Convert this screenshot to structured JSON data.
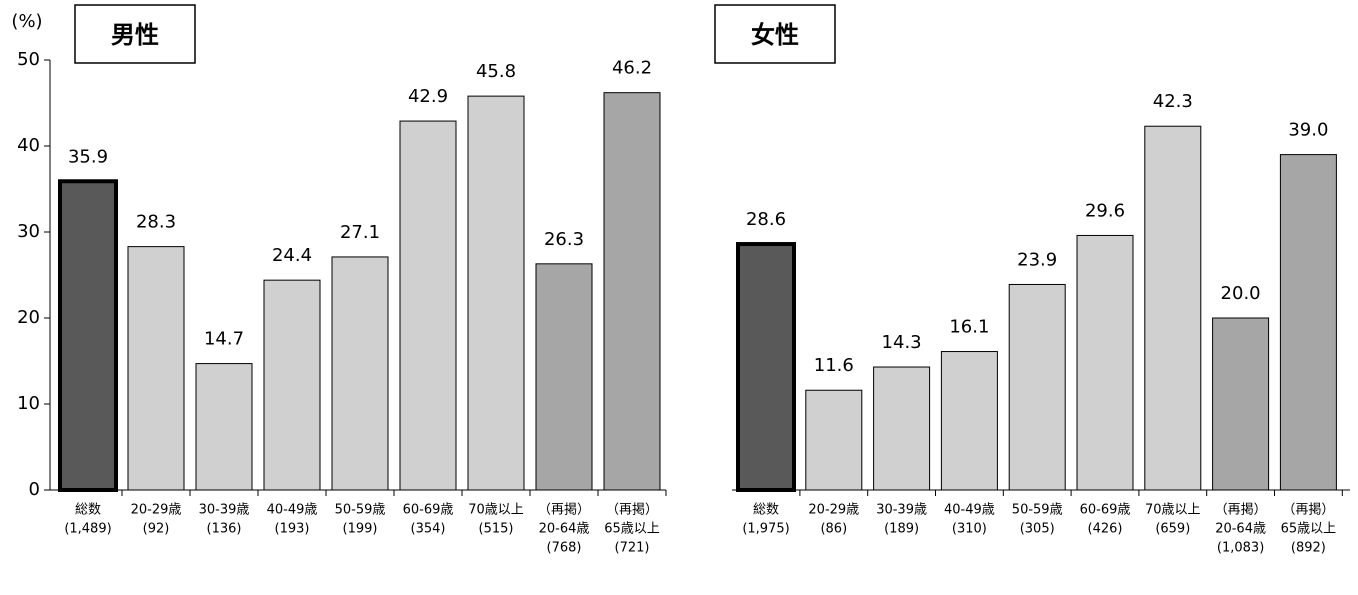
{
  "chart_data": [
    {
      "type": "bar",
      "title": "男性",
      "ylabel": "(%)",
      "categories": [
        [
          "総数",
          "(1,489)"
        ],
        [
          "20-29歳",
          "(92)"
        ],
        [
          "30-39歳",
          "(136)"
        ],
        [
          "40-49歳",
          "(193)"
        ],
        [
          "50-59歳",
          "(199)"
        ],
        [
          "60-69歳",
          "(354)"
        ],
        [
          "70歳以上",
          "(515)"
        ],
        [
          "（再掲）",
          "20-64歳",
          "(768)"
        ],
        [
          "（再掲）",
          "65歳以上",
          "(721)"
        ]
      ],
      "values": [
        35.9,
        28.3,
        14.7,
        24.4,
        27.1,
        42.9,
        45.8,
        26.3,
        46.2
      ],
      "value_labels": [
        "35.9",
        "28.3",
        "14.7",
        "24.4",
        "27.1",
        "42.9",
        "45.8",
        "26.3",
        "46.2"
      ],
      "colors": [
        "#595959",
        "#d0d0d0",
        "#d0d0d0",
        "#d0d0d0",
        "#d0d0d0",
        "#d0d0d0",
        "#d0d0d0",
        "#a6a6a6",
        "#a6a6a6"
      ],
      "edgewidths": [
        4,
        1,
        1,
        1,
        1,
        1,
        1,
        1,
        1
      ],
      "ylim": [
        0,
        50
      ],
      "yticks": [
        0,
        10,
        20,
        30,
        40,
        50
      ]
    },
    {
      "type": "bar",
      "title": "女性",
      "categories": [
        [
          "総数",
          "(1,975)"
        ],
        [
          "20-29歳",
          "(86)"
        ],
        [
          "30-39歳",
          "(189)"
        ],
        [
          "40-49歳",
          "(310)"
        ],
        [
          "50-59歳",
          "(305)"
        ],
        [
          "60-69歳",
          "(426)"
        ],
        [
          "70歳以上",
          "(659)"
        ],
        [
          "（再掲）",
          "20-64歳",
          "(1,083)"
        ],
        [
          "（再掲）",
          "65歳以上",
          "(892)"
        ]
      ],
      "values": [
        28.6,
        11.6,
        14.3,
        16.1,
        23.9,
        29.6,
        42.3,
        20.0,
        39.0
      ],
      "value_labels": [
        "28.6",
        "11.6",
        "14.3",
        "16.1",
        "23.9",
        "29.6",
        "42.3",
        "20.0",
        "39.0"
      ],
      "colors": [
        "#595959",
        "#d0d0d0",
        "#d0d0d0",
        "#d0d0d0",
        "#d0d0d0",
        "#d0d0d0",
        "#d0d0d0",
        "#a6a6a6",
        "#a6a6a6"
      ],
      "edgewidths": [
        4,
        1,
        1,
        1,
        1,
        1,
        1,
        1,
        1
      ],
      "ylim": [
        0,
        50
      ]
    }
  ]
}
